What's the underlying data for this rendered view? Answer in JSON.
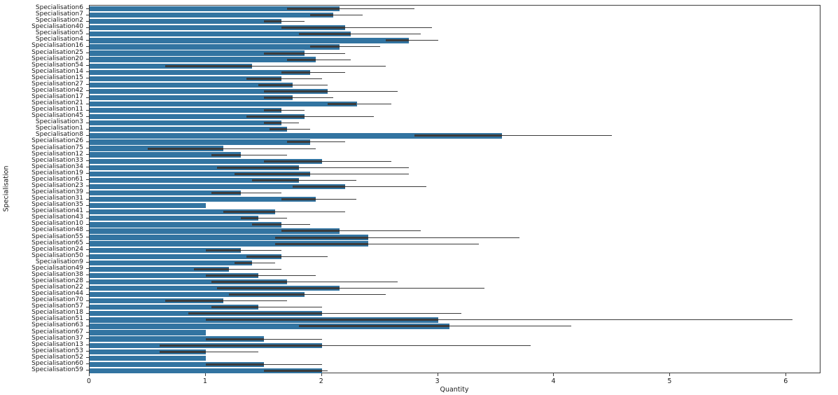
{
  "chart_data": {
    "type": "bar",
    "orientation": "horizontal",
    "title": "",
    "xlabel": "Quantity",
    "ylabel": "Specialisation",
    "xlim": [
      0,
      6.3
    ],
    "xticks": [
      0,
      1,
      2,
      3,
      4,
      5,
      6
    ],
    "grid": false,
    "legend": null,
    "bar_color": "#3274a1",
    "error_bar_color": "#3b3b3b",
    "categories": [
      "Specialisation6",
      "Specialisation7",
      "Specialisation2",
      "Specialisation40",
      "Specialisation5",
      "Specialisation4",
      "Specialisation16",
      "Specialisation25",
      "Specialisation20",
      "Specialisation54",
      "Specialisation14",
      "Specialisation15",
      "Specialisation27",
      "Specialisation42",
      "Specialisation17",
      "Specialisation21",
      "Specialisation11",
      "Specialisation45",
      "Specialisation3",
      "Specialisation1",
      "Specialisation8",
      "Specialisation26",
      "Specialisation75",
      "Specialisation12",
      "Specialisation33",
      "Specialisation34",
      "Specialisation19",
      "Specialisation61",
      "Specialisation23",
      "Specialisation39",
      "Specialisation31",
      "Specialisation35",
      "Specialisation41",
      "Specialisation43",
      "Specialisation10",
      "Specialisation48",
      "Specialisation55",
      "Specialisation65",
      "Specialisation24",
      "Specialisation50",
      "Specialisation9",
      "Specialisation49",
      "Specialisation38",
      "Specialisation28",
      "Specialisation22",
      "Specialisation44",
      "Specialisation70",
      "Specialisation57",
      "Specialisation18",
      "Specialisation51",
      "Specialisation63",
      "Specialisation67",
      "Specialisation37",
      "Specialisation13",
      "Specialisation53",
      "Specialisation52",
      "Specialisation60",
      "Specialisation59"
    ],
    "values": [
      2.15,
      2.1,
      1.65,
      2.2,
      2.25,
      2.75,
      2.15,
      1.85,
      1.95,
      1.4,
      1.9,
      1.65,
      1.75,
      2.05,
      1.75,
      2.3,
      1.65,
      1.85,
      1.65,
      1.7,
      3.55,
      1.9,
      1.15,
      1.3,
      2.0,
      1.8,
      1.9,
      1.8,
      2.2,
      1.3,
      1.95,
      1.0,
      1.6,
      1.45,
      1.65,
      2.15,
      2.4,
      2.4,
      1.3,
      1.65,
      1.4,
      1.2,
      1.45,
      1.7,
      2.15,
      1.85,
      1.15,
      1.45,
      2.0,
      3.0,
      3.1,
      1.0,
      1.5,
      2.0,
      1.0,
      1.0,
      1.5,
      2.0
    ],
    "error_intervals": [
      [
        1.7,
        2.8
      ],
      [
        1.9,
        2.35
      ],
      [
        1.5,
        1.85
      ],
      [
        1.65,
        2.95
      ],
      [
        1.8,
        2.85
      ],
      [
        2.55,
        3.0
      ],
      [
        1.9,
        2.5
      ],
      [
        1.5,
        2.2
      ],
      [
        1.7,
        2.25
      ],
      [
        0.65,
        2.55
      ],
      [
        1.65,
        2.2
      ],
      [
        1.35,
        2.0
      ],
      [
        1.45,
        2.05
      ],
      [
        1.5,
        2.65
      ],
      [
        1.5,
        2.1
      ],
      [
        2.05,
        2.6
      ],
      [
        1.5,
        1.85
      ],
      [
        1.35,
        2.45
      ],
      [
        1.5,
        1.8
      ],
      [
        1.55,
        1.9
      ],
      [
        2.8,
        4.5
      ],
      [
        1.7,
        2.2
      ],
      [
        0.5,
        1.95
      ],
      [
        1.05,
        1.7
      ],
      [
        1.5,
        2.6
      ],
      [
        1.1,
        2.75
      ],
      [
        1.25,
        2.75
      ],
      [
        1.4,
        2.3
      ],
      [
        1.75,
        2.9
      ],
      [
        1.05,
        1.65
      ],
      [
        1.65,
        2.3
      ],
      null,
      [
        1.15,
        2.2
      ],
      [
        1.3,
        1.7
      ],
      [
        1.4,
        1.9
      ],
      [
        1.65,
        2.85
      ],
      [
        1.6,
        3.7
      ],
      [
        1.6,
        3.35
      ],
      [
        1.0,
        1.65
      ],
      [
        1.35,
        2.05
      ],
      [
        1.25,
        1.6
      ],
      [
        0.9,
        1.65
      ],
      [
        1.0,
        1.95
      ],
      [
        1.05,
        2.65
      ],
      [
        1.1,
        3.4
      ],
      [
        1.2,
        2.55
      ],
      [
        0.65,
        1.7
      ],
      [
        1.05,
        2.0
      ],
      [
        0.85,
        3.2
      ],
      [
        1.0,
        6.05
      ],
      [
        1.8,
        4.15
      ],
      null,
      [
        1.0,
        2.0
      ],
      [
        0.6,
        3.8
      ],
      [
        0.6,
        1.45
      ],
      null,
      [
        1.0,
        2.0
      ],
      [
        1.5,
        2.05
      ]
    ]
  }
}
